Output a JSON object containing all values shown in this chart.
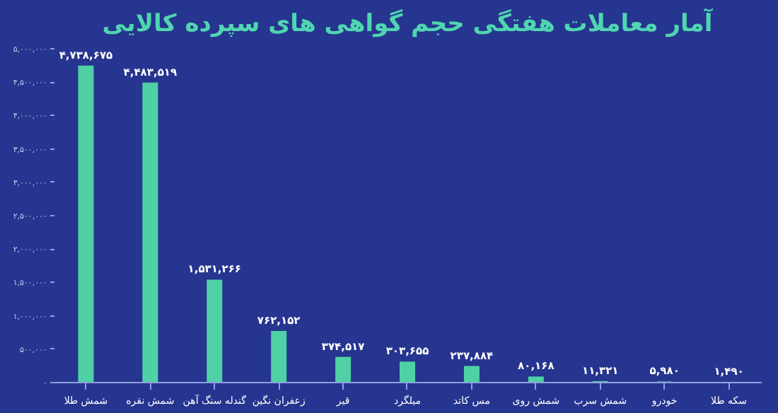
{
  "chart_data": {
    "type": "bar",
    "title": "آمار معاملات هفتگی حجم گواهی های سپرده کالایی",
    "categories": [
      "شمش طلا",
      "شمش نقره",
      "گندله سنگ آهن",
      "زعفران نگین",
      "قیر",
      "میلگرد",
      "مس کاتد",
      "شمش روی",
      "شمش سرب",
      "خودرو",
      "سکه طلا"
    ],
    "values": [
      4738675,
      4483519,
      1531266,
      762152,
      374517,
      303655,
      237884,
      80168,
      11321,
      5980,
      1490
    ],
    "value_labels": [
      "۴,۷۳۸,۶۷۵",
      "۴,۴۸۳,۵۱۹",
      "۱,۵۳۱,۲۶۶",
      "۷۶۲,۱۵۲",
      "۳۷۴,۵۱۷",
      "۳۰۳,۶۵۵",
      "۲۳۷,۸۸۴",
      "۸۰,۱۶۸",
      "۱۱,۳۲۱",
      "۵,۹۸۰",
      "۱,۴۹۰"
    ],
    "color": "#4fd1a5",
    "ylim": [
      0,
      5000000
    ],
    "yticks": [
      {
        "value": 0,
        "label": "۰"
      },
      {
        "value": 500000,
        "label": "۵۰۰,۰۰۰"
      },
      {
        "value": 1000000,
        "label": "۱,۰۰۰,۰۰۰"
      },
      {
        "value": 1500000,
        "label": "۱,۵۰۰,۰۰۰"
      },
      {
        "value": 2000000,
        "label": "۲,۰۰۰,۰۰۰"
      },
      {
        "value": 2500000,
        "label": "۲,۵۰۰,۰۰۰"
      },
      {
        "value": 3000000,
        "label": "۳,۰۰۰,۰۰۰"
      },
      {
        "value": 3500000,
        "label": "۳,۵۰۰,۰۰۰"
      },
      {
        "value": 4000000,
        "label": "۴,۰۰۰,۰۰۰"
      },
      {
        "value": 4500000,
        "label": "۴,۵۰۰,۰۰۰"
      },
      {
        "value": 5000000,
        "label": "۵,۰۰۰,۰۰۰"
      }
    ],
    "grid": false
  }
}
